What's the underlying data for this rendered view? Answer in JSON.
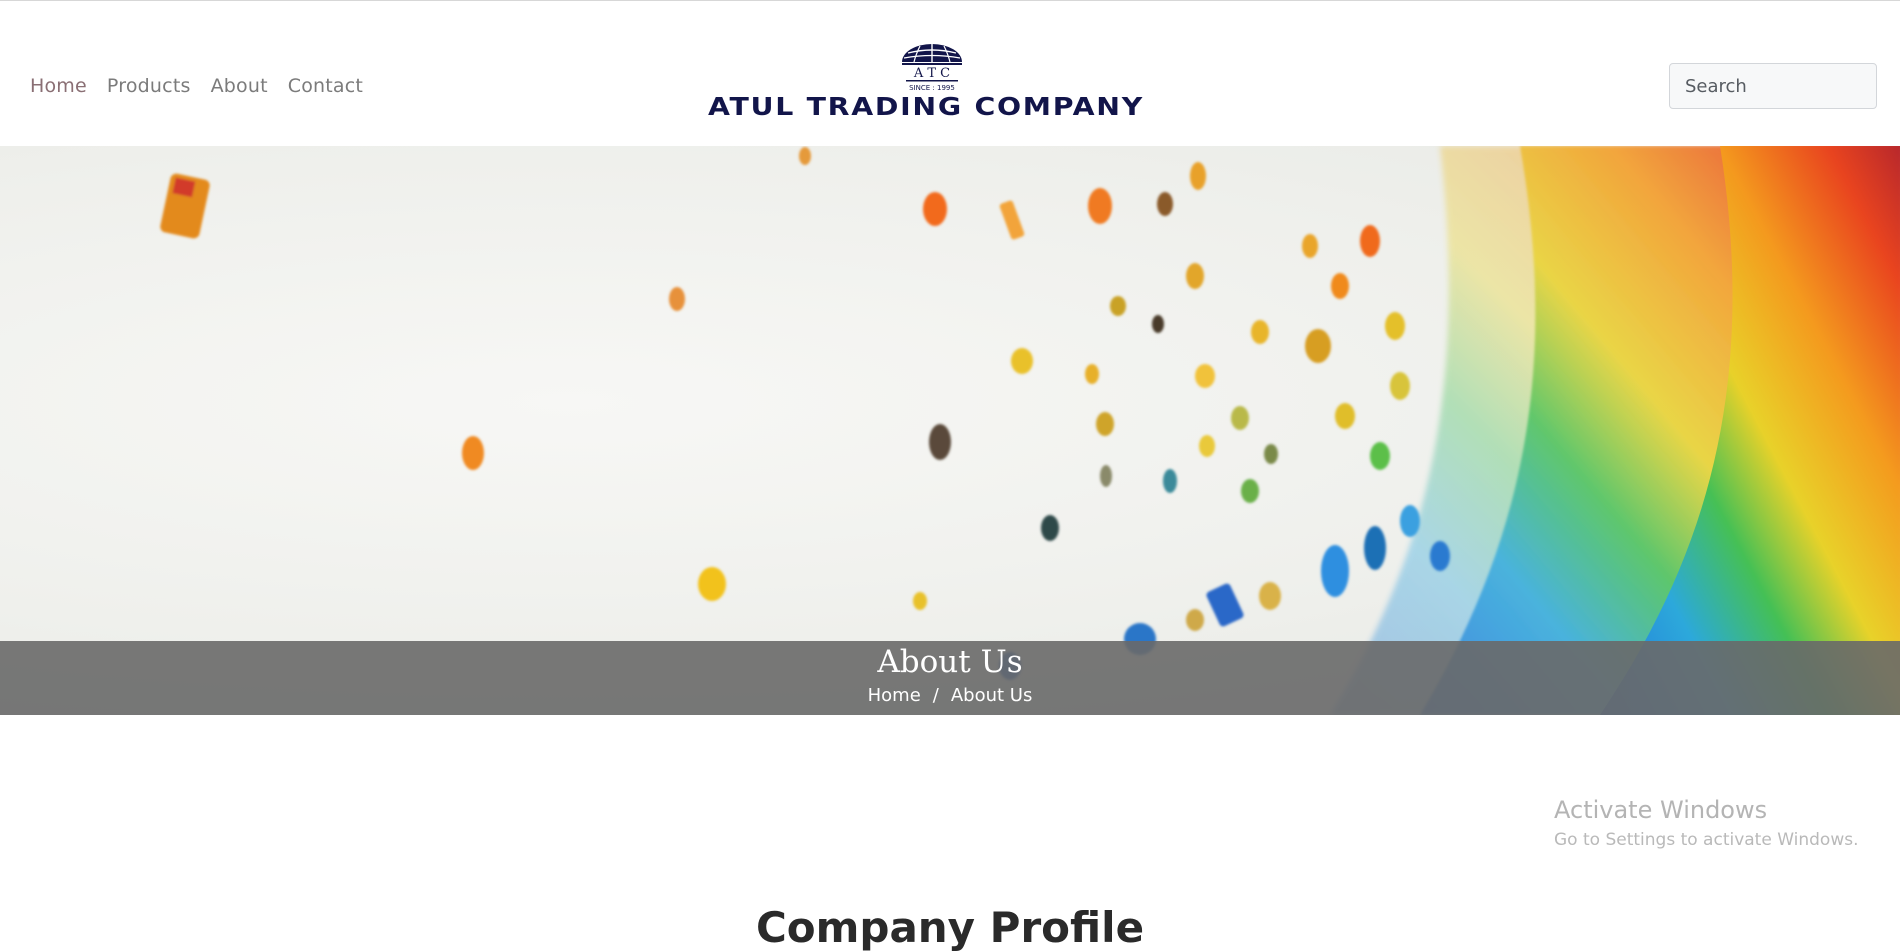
{
  "nav": {
    "items": [
      {
        "label": "Home"
      },
      {
        "label": "Products"
      },
      {
        "label": "About"
      },
      {
        "label": "Contact"
      }
    ]
  },
  "logo": {
    "monogram": "A T C",
    "since": "SINCE : 1995",
    "company_name": "ATUL TRADING COMPANY",
    "color": "#12154a"
  },
  "search": {
    "placeholder": "Search"
  },
  "hero": {
    "title": "About Us",
    "breadcrumb": {
      "home": "Home",
      "separator": "/",
      "current": "About Us"
    }
  },
  "os_watermark": {
    "title": "Activate Windows",
    "subtitle": "Go to Settings to activate Windows."
  },
  "section": {
    "heading": "Company Profile"
  }
}
